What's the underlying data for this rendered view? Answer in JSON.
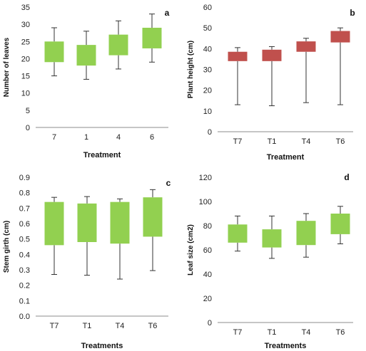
{
  "chart_data": [
    {
      "type": "box",
      "panel_label": "a",
      "ylabel": "Number of leaves",
      "xlabel": "Treatment",
      "ylim": [
        0,
        35
      ],
      "yticks": [
        0,
        5,
        10,
        15,
        20,
        25,
        30,
        35
      ],
      "categories": [
        "7",
        "1",
        "4",
        "6"
      ],
      "box_color": "#92d050",
      "boxes": [
        {
          "min": 15,
          "q1": 19,
          "q3": 25,
          "max": 29
        },
        {
          "min": 14,
          "q1": 18,
          "q3": 24,
          "max": 28
        },
        {
          "min": 17,
          "q1": 21,
          "q3": 27,
          "max": 31
        },
        {
          "min": 19,
          "q1": 23,
          "q3": 29,
          "max": 33
        }
      ]
    },
    {
      "type": "box",
      "panel_label": "b",
      "ylabel": "Plant height (cm)",
      "xlabel": "Treatment",
      "ylim": [
        0,
        60
      ],
      "yticks": [
        0,
        10,
        20,
        30,
        40,
        50,
        60
      ],
      "categories": [
        "T7",
        "T1",
        "T4",
        "T6"
      ],
      "box_color": "#c0504d",
      "boxes": [
        {
          "min": 13,
          "q1": 34,
          "q3": 38.5,
          "max": 40.5
        },
        {
          "min": 12.5,
          "q1": 34,
          "q3": 39.5,
          "max": 41
        },
        {
          "min": 14,
          "q1": 38.5,
          "q3": 43.5,
          "max": 45
        },
        {
          "min": 13,
          "q1": 43,
          "q3": 48.5,
          "max": 50
        }
      ]
    },
    {
      "type": "box",
      "panel_label": "c",
      "ylabel": "Stem girth (cm)",
      "xlabel": "Treatments",
      "ylim": [
        0,
        0.9
      ],
      "yticks": [
        "0.0",
        "0.1",
        "0.2",
        "0.3",
        "0.4",
        "0.5",
        "0.6",
        "0.7",
        "0.8",
        "0.9"
      ],
      "categories": [
        "T7",
        "T1",
        "T4",
        "T6"
      ],
      "box_color": "#92d050",
      "boxes": [
        {
          "min": 0.27,
          "q1": 0.46,
          "q3": 0.74,
          "max": 0.77
        },
        {
          "min": 0.265,
          "q1": 0.48,
          "q3": 0.73,
          "max": 0.775
        },
        {
          "min": 0.24,
          "q1": 0.47,
          "q3": 0.74,
          "max": 0.76
        },
        {
          "min": 0.295,
          "q1": 0.515,
          "q3": 0.77,
          "max": 0.82
        }
      ]
    },
    {
      "type": "box",
      "panel_label": "d",
      "ylabel": "Leaf size (cm2)",
      "xlabel": "Treatments",
      "ylim": [
        0,
        120
      ],
      "yticks": [
        0,
        20,
        40,
        60,
        80,
        100,
        120
      ],
      "categories": [
        "T7",
        "T1",
        "T4",
        "T6"
      ],
      "box_color": "#92d050",
      "boxes": [
        {
          "min": 59,
          "q1": 66,
          "q3": 81,
          "max": 88
        },
        {
          "min": 53,
          "q1": 62,
          "q3": 77,
          "max": 88
        },
        {
          "min": 54,
          "q1": 64,
          "q3": 84,
          "max": 90
        },
        {
          "min": 65,
          "q1": 73,
          "q3": 90,
          "max": 96
        }
      ]
    }
  ]
}
